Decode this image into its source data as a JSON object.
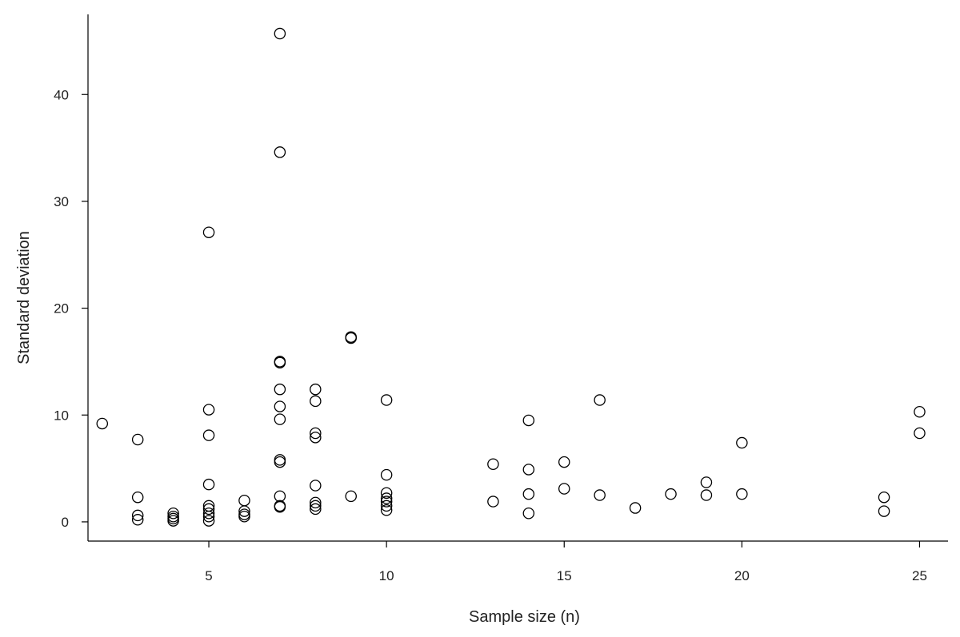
{
  "chart_data": {
    "type": "scatter",
    "title": "",
    "xlabel": "Sample size (n)",
    "ylabel": "Standard deviation",
    "xlim": [
      1.6,
      25.8
    ],
    "ylim": [
      -1.8,
      47.5
    ],
    "xticks": [
      5,
      10,
      15,
      20,
      25
    ],
    "yticks": [
      0,
      10,
      20,
      30,
      40
    ],
    "grid": false,
    "marker": "open-circle",
    "points": [
      [
        2,
        9.2
      ],
      [
        3,
        7.7
      ],
      [
        3,
        2.3
      ],
      [
        3,
        0.6
      ],
      [
        3,
        0.2
      ],
      [
        4,
        0.8
      ],
      [
        4,
        0.5
      ],
      [
        4,
        0.3
      ],
      [
        4,
        0.1
      ],
      [
        5,
        27.1
      ],
      [
        5,
        10.5
      ],
      [
        5,
        8.1
      ],
      [
        5,
        3.5
      ],
      [
        5,
        1.5
      ],
      [
        5,
        1.2
      ],
      [
        5,
        0.8
      ],
      [
        5,
        0.5
      ],
      [
        5,
        0.1
      ],
      [
        6,
        2.0
      ],
      [
        6,
        1.0
      ],
      [
        6,
        0.7
      ],
      [
        6,
        0.5
      ],
      [
        7,
        45.7
      ],
      [
        7,
        34.6
      ],
      [
        7,
        15.0
      ],
      [
        7,
        14.9
      ],
      [
        7,
        12.4
      ],
      [
        7,
        10.8
      ],
      [
        7,
        9.6
      ],
      [
        7,
        5.8
      ],
      [
        7,
        5.6
      ],
      [
        7,
        2.4
      ],
      [
        7,
        1.5
      ],
      [
        7,
        1.4
      ],
      [
        8,
        12.4
      ],
      [
        8,
        11.3
      ],
      [
        8,
        8.3
      ],
      [
        8,
        7.9
      ],
      [
        8,
        3.4
      ],
      [
        8,
        1.8
      ],
      [
        8,
        1.5
      ],
      [
        8,
        1.2
      ],
      [
        9,
        17.3
      ],
      [
        9,
        17.2
      ],
      [
        9,
        2.4
      ],
      [
        10,
        11.4
      ],
      [
        10,
        4.4
      ],
      [
        10,
        2.7
      ],
      [
        10,
        2.2
      ],
      [
        10,
        1.9
      ],
      [
        10,
        1.5
      ],
      [
        10,
        1.1
      ],
      [
        13,
        5.4
      ],
      [
        13,
        1.9
      ],
      [
        14,
        9.5
      ],
      [
        14,
        4.9
      ],
      [
        14,
        2.6
      ],
      [
        14,
        0.8
      ],
      [
        15,
        5.6
      ],
      [
        15,
        3.1
      ],
      [
        16,
        11.4
      ],
      [
        16,
        2.5
      ],
      [
        17,
        1.3
      ],
      [
        18,
        2.6
      ],
      [
        19,
        3.7
      ],
      [
        19,
        2.5
      ],
      [
        20,
        7.4
      ],
      [
        20,
        2.6
      ],
      [
        24,
        2.3
      ],
      [
        24,
        1.0
      ],
      [
        25,
        10.3
      ],
      [
        25,
        8.3
      ]
    ]
  }
}
